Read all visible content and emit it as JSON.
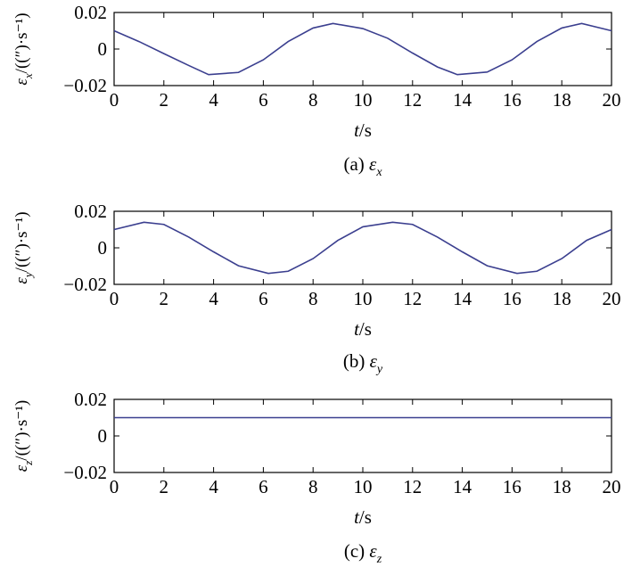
{
  "chart_data": [
    {
      "type": "line",
      "caption_prefix": "(a)",
      "caption_symbol": "ε",
      "caption_sub": "x",
      "ylabel_symbol": "ε",
      "ylabel_sub": "x",
      "ylabel_unit": "/((″)·s⁻¹)",
      "xlabel_symbol": "t",
      "xlabel_unit": "/s",
      "xlim": [
        0,
        20
      ],
      "ylim": [
        -0.02,
        0.02
      ],
      "xticks": [
        "0",
        "2",
        "4",
        "6",
        "8",
        "10",
        "12",
        "14",
        "16",
        "18",
        "20"
      ],
      "yticks": [
        "0.02",
        "0",
        "−0.02"
      ],
      "series": [
        {
          "x": [
            0,
            1,
            2,
            3,
            3.8,
            5,
            6,
            7,
            8,
            8.8,
            10,
            11,
            12,
            13,
            13.8,
            15,
            16,
            17,
            18,
            18.8,
            20
          ],
          "y": [
            0.01,
            0.0041,
            -0.0025,
            -0.009,
            -0.014,
            -0.0128,
            -0.0059,
            0.0041,
            0.0115,
            0.014,
            0.0112,
            0.0059,
            -0.0022,
            -0.0098,
            -0.014,
            -0.0126,
            -0.0059,
            0.0041,
            0.0115,
            0.014,
            0.01
          ]
        }
      ]
    },
    {
      "type": "line",
      "caption_prefix": "(b)",
      "caption_symbol": "ε",
      "caption_sub": "y",
      "ylabel_symbol": "ε",
      "ylabel_sub": "y",
      "ylabel_unit": "/((″)·s⁻¹)",
      "xlabel_symbol": "t",
      "xlabel_unit": "/s",
      "xlim": [
        0,
        20
      ],
      "ylim": [
        -0.02,
        0.02
      ],
      "xticks": [
        "0",
        "2",
        "4",
        "6",
        "8",
        "10",
        "12",
        "14",
        "16",
        "18",
        "20"
      ],
      "yticks": [
        "0.02",
        "0",
        "−0.02"
      ],
      "series": [
        {
          "x": [
            0,
            1.2,
            2,
            3,
            4,
            5,
            6.2,
            7,
            8,
            9,
            10,
            11.2,
            12,
            13,
            14,
            15,
            16.2,
            17,
            18,
            19,
            20
          ],
          "y": [
            0.01,
            0.014,
            0.0128,
            0.0059,
            -0.0022,
            -0.0098,
            -0.014,
            -0.0128,
            -0.0059,
            0.0041,
            0.0115,
            0.014,
            0.0128,
            0.0059,
            -0.0022,
            -0.0098,
            -0.014,
            -0.0128,
            -0.0059,
            0.0041,
            0.01
          ]
        }
      ]
    },
    {
      "type": "line",
      "caption_prefix": "(c)",
      "caption_symbol": "ε",
      "caption_sub": "z",
      "ylabel_symbol": "ε",
      "ylabel_sub": "z",
      "ylabel_unit": "/((″)·s⁻¹)",
      "xlabel_symbol": "t",
      "xlabel_unit": "/s",
      "xlim": [
        0,
        20
      ],
      "ylim": [
        -0.02,
        0.02
      ],
      "xticks": [
        "0",
        "2",
        "4",
        "6",
        "8",
        "10",
        "12",
        "14",
        "16",
        "18",
        "20"
      ],
      "yticks": [
        "0.02",
        "0",
        "−0.02"
      ],
      "series": [
        {
          "x": [
            0,
            20
          ],
          "y": [
            0.01,
            0.01
          ]
        }
      ]
    }
  ]
}
